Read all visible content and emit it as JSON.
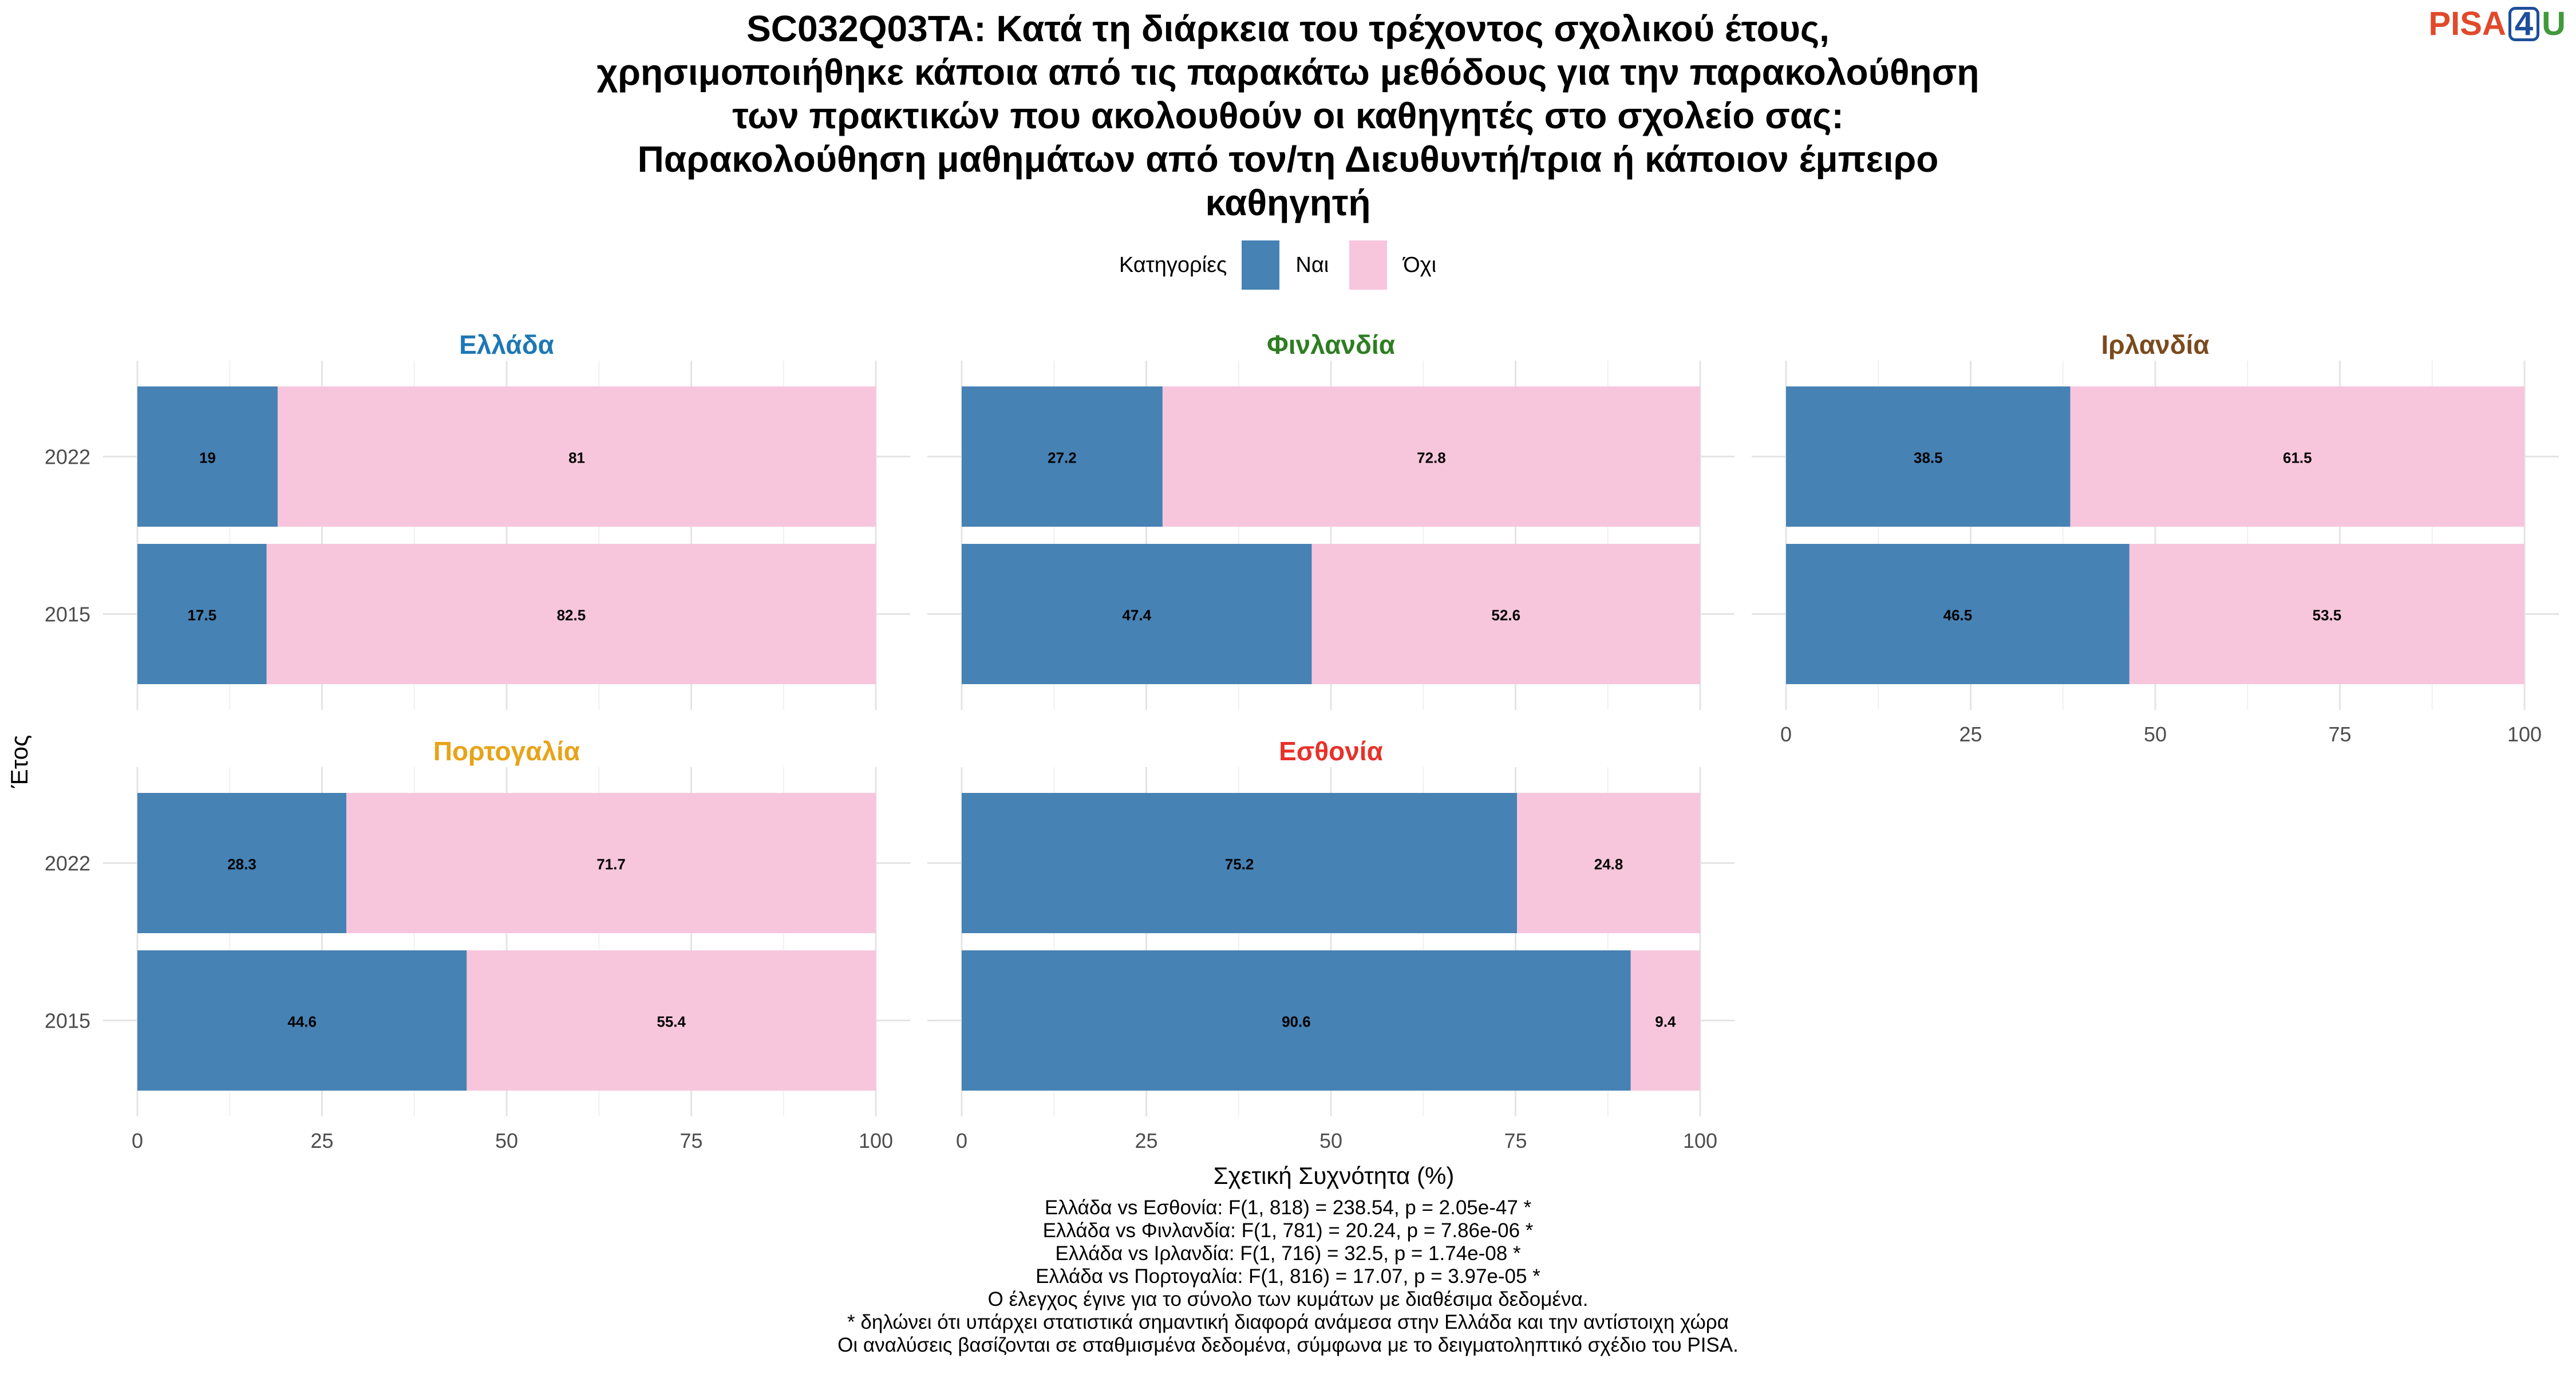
{
  "title_lines": [
    "SC032Q03TA: Κατά τη διάρκεια του τρέχοντος σχολικού έτους,",
    "χρησιμοποιήθηκε κάποια από τις παρακάτω μεθόδους για την παρακολούθηση",
    "των πρακτικών που ακολουθούν οι καθηγητές στο σχολείο σας:",
    "Παρακολούθηση μαθημάτων από τον/τη Διευθυντή/τρια ή κάποιον έμπειρο",
    "καθηγητή"
  ],
  "logo": {
    "pisa": "PISA",
    "four": "4",
    "u": "U"
  },
  "legend": {
    "title": "Κατηγορίες",
    "items": [
      {
        "label": "Ναι",
        "color": "#4682b4"
      },
      {
        "label": "Όχι",
        "color": "#f7c6dc"
      }
    ]
  },
  "chart_data": {
    "type": "bar",
    "orientation": "horizontal",
    "stacked": true,
    "xlabel": "Σχετική Συχνότητα (%)",
    "ylabel": "Έτος",
    "xlim": [
      0,
      100
    ],
    "xticks": [
      "0",
      "25",
      "50",
      "75",
      "100"
    ],
    "categories": [
      "2022",
      "2015"
    ],
    "series_names": [
      "Ναι",
      "Όχι"
    ],
    "series_colors": [
      "#4682b4",
      "#f7c6dc"
    ],
    "panels": [
      {
        "name": "Ελλάδα",
        "color": "#1f77b4",
        "values": {
          "2022": [
            19,
            81
          ],
          "2015": [
            17.5,
            82.5
          ]
        },
        "labels": {
          "2022": [
            "19",
            "81"
          ],
          "2015": [
            "17.5",
            "82.5"
          ]
        }
      },
      {
        "name": "Φινλανδία",
        "color": "#2e7d22",
        "values": {
          "2022": [
            27.2,
            72.8
          ],
          "2015": [
            47.4,
            52.6
          ]
        },
        "labels": {
          "2022": [
            "27.2",
            "72.8"
          ],
          "2015": [
            "47.4",
            "52.6"
          ]
        }
      },
      {
        "name": "Ιρλανδία",
        "color": "#7b4a1e",
        "values": {
          "2022": [
            38.5,
            61.5
          ],
          "2015": [
            46.5,
            53.5
          ]
        },
        "labels": {
          "2022": [
            "38.5",
            "61.5"
          ],
          "2015": [
            "46.5",
            "53.5"
          ]
        }
      },
      {
        "name": "Πορτογαλία",
        "color": "#e8a317",
        "values": {
          "2022": [
            28.3,
            71.7
          ],
          "2015": [
            44.6,
            55.4
          ]
        },
        "labels": {
          "2022": [
            "28.3",
            "71.7"
          ],
          "2015": [
            "44.6",
            "55.4"
          ]
        }
      },
      {
        "name": "Εσθονία",
        "color": "#e8312a",
        "values": {
          "2022": [
            75.2,
            24.8
          ],
          "2015": [
            90.6,
            9.4
          ]
        },
        "labels": {
          "2022": [
            "75.2",
            "24.8"
          ],
          "2015": [
            "90.6",
            "9.4"
          ]
        }
      }
    ]
  },
  "footnotes": [
    "Ελλάδα vs Εσθονία: F(1, 818) = 238.54, p = 2.05e-47 *",
    "Ελλάδα vs Φινλανδία: F(1, 781) = 20.24, p = 7.86e-06 *",
    "Ελλάδα vs Ιρλανδία: F(1, 716) = 32.5, p = 1.74e-08 *",
    "Ελλάδα vs Πορτογαλία: F(1, 816) = 17.07, p = 3.97e-05 *",
    "Ο έλεγχος έγινε για το σύνολο των κυμάτων με διαθέσιμα δεδομένα.",
    "* δηλώνει ότι υπάρχει στατιστικά σημαντική διαφορά ανάμεσα στην Ελλάδα και την αντίστοιχη χώρα",
    "Οι αναλύσεις βασίζονται σε σταθμισμένα δεδομένα, σύμφωνα με το δειγματοληπτικό σχέδιο του PISA."
  ]
}
